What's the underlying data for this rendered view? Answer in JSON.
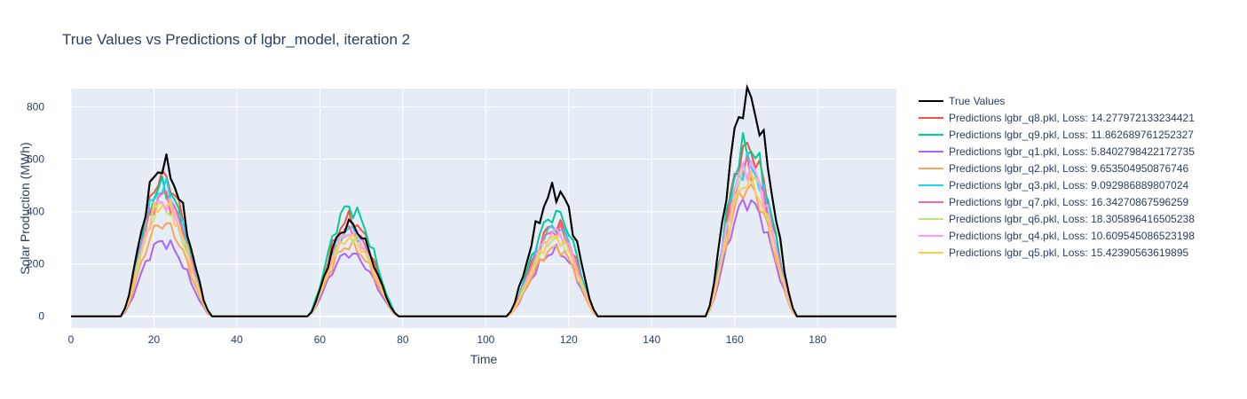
{
  "chart_data": {
    "type": "line",
    "title": "True Values vs Predictions of lgbr_model, iteration 2",
    "xlabel": "Time",
    "ylabel": "Solar Production (MWh)",
    "xlim": [
      0,
      199
    ],
    "ylim": [
      -45,
      870
    ],
    "xticks": [
      0,
      20,
      40,
      60,
      80,
      100,
      120,
      140,
      160,
      180
    ],
    "yticks": [
      0,
      200,
      400,
      600,
      800
    ],
    "grid": true,
    "legend_position": "right",
    "colors": {
      "plot_bg": "#e5ecf6",
      "grid": "#ffffff",
      "text": "#2a3f5f"
    },
    "peaks": [
      {
        "start": 12,
        "peak": 22,
        "end": 34
      },
      {
        "start": 57,
        "peak": 67,
        "end": 79
      },
      {
        "start": 105,
        "peak": 117,
        "end": 127
      },
      {
        "start": 153,
        "peak": 163,
        "end": 175
      }
    ],
    "series": [
      {
        "name": "True Values",
        "color": "#000000",
        "peaks": [
          575,
          350,
          480,
          830
        ]
      },
      {
        "name": "Predictions lgbr_q8.pkl, Loss: 14.277972133234421",
        "color": "#ef553b",
        "peaks": [
          530,
          370,
          350,
          640
        ]
      },
      {
        "name": "Predictions lgbr_q9.pkl, Loss: 11.862689761252327",
        "color": "#00cc96",
        "peaks": [
          495,
          415,
          390,
          650
        ]
      },
      {
        "name": "Predictions lgbr_q1.pkl, Loss: 5.8402798422172735",
        "color": "#ab63fa",
        "peaks": [
          285,
          240,
          250,
          440
        ]
      },
      {
        "name": "Predictions lgbr_q2.pkl, Loss: 9.653504950876746",
        "color": "#ffa15a",
        "peaks": [
          355,
          270,
          260,
          490
        ]
      },
      {
        "name": "Predictions lgbr_q3.pkl, Loss: 9.092986889807024",
        "color": "#19d3f3",
        "peaks": [
          490,
          330,
          340,
          580
        ]
      },
      {
        "name": "Predictions lgbr_q7.pkl, Loss: 16.34270867596259",
        "color": "#ff6692",
        "peaks": [
          460,
          330,
          330,
          565
        ]
      },
      {
        "name": "Predictions lgbr_q6.pkl, Loss: 18.305896416505238",
        "color": "#b6e880",
        "peaks": [
          420,
          310,
          300,
          545
        ]
      },
      {
        "name": "Predictions lgbr_q4.pkl, Loss: 10.609545086523198",
        "color": "#ff97ff",
        "peaks": [
          440,
          320,
          320,
          575
        ]
      },
      {
        "name": "Predictions lgbr_q5.pkl, Loss: 15.42390563619895",
        "color": "#fecb52",
        "peaks": [
          430,
          300,
          300,
          515
        ]
      }
    ]
  }
}
